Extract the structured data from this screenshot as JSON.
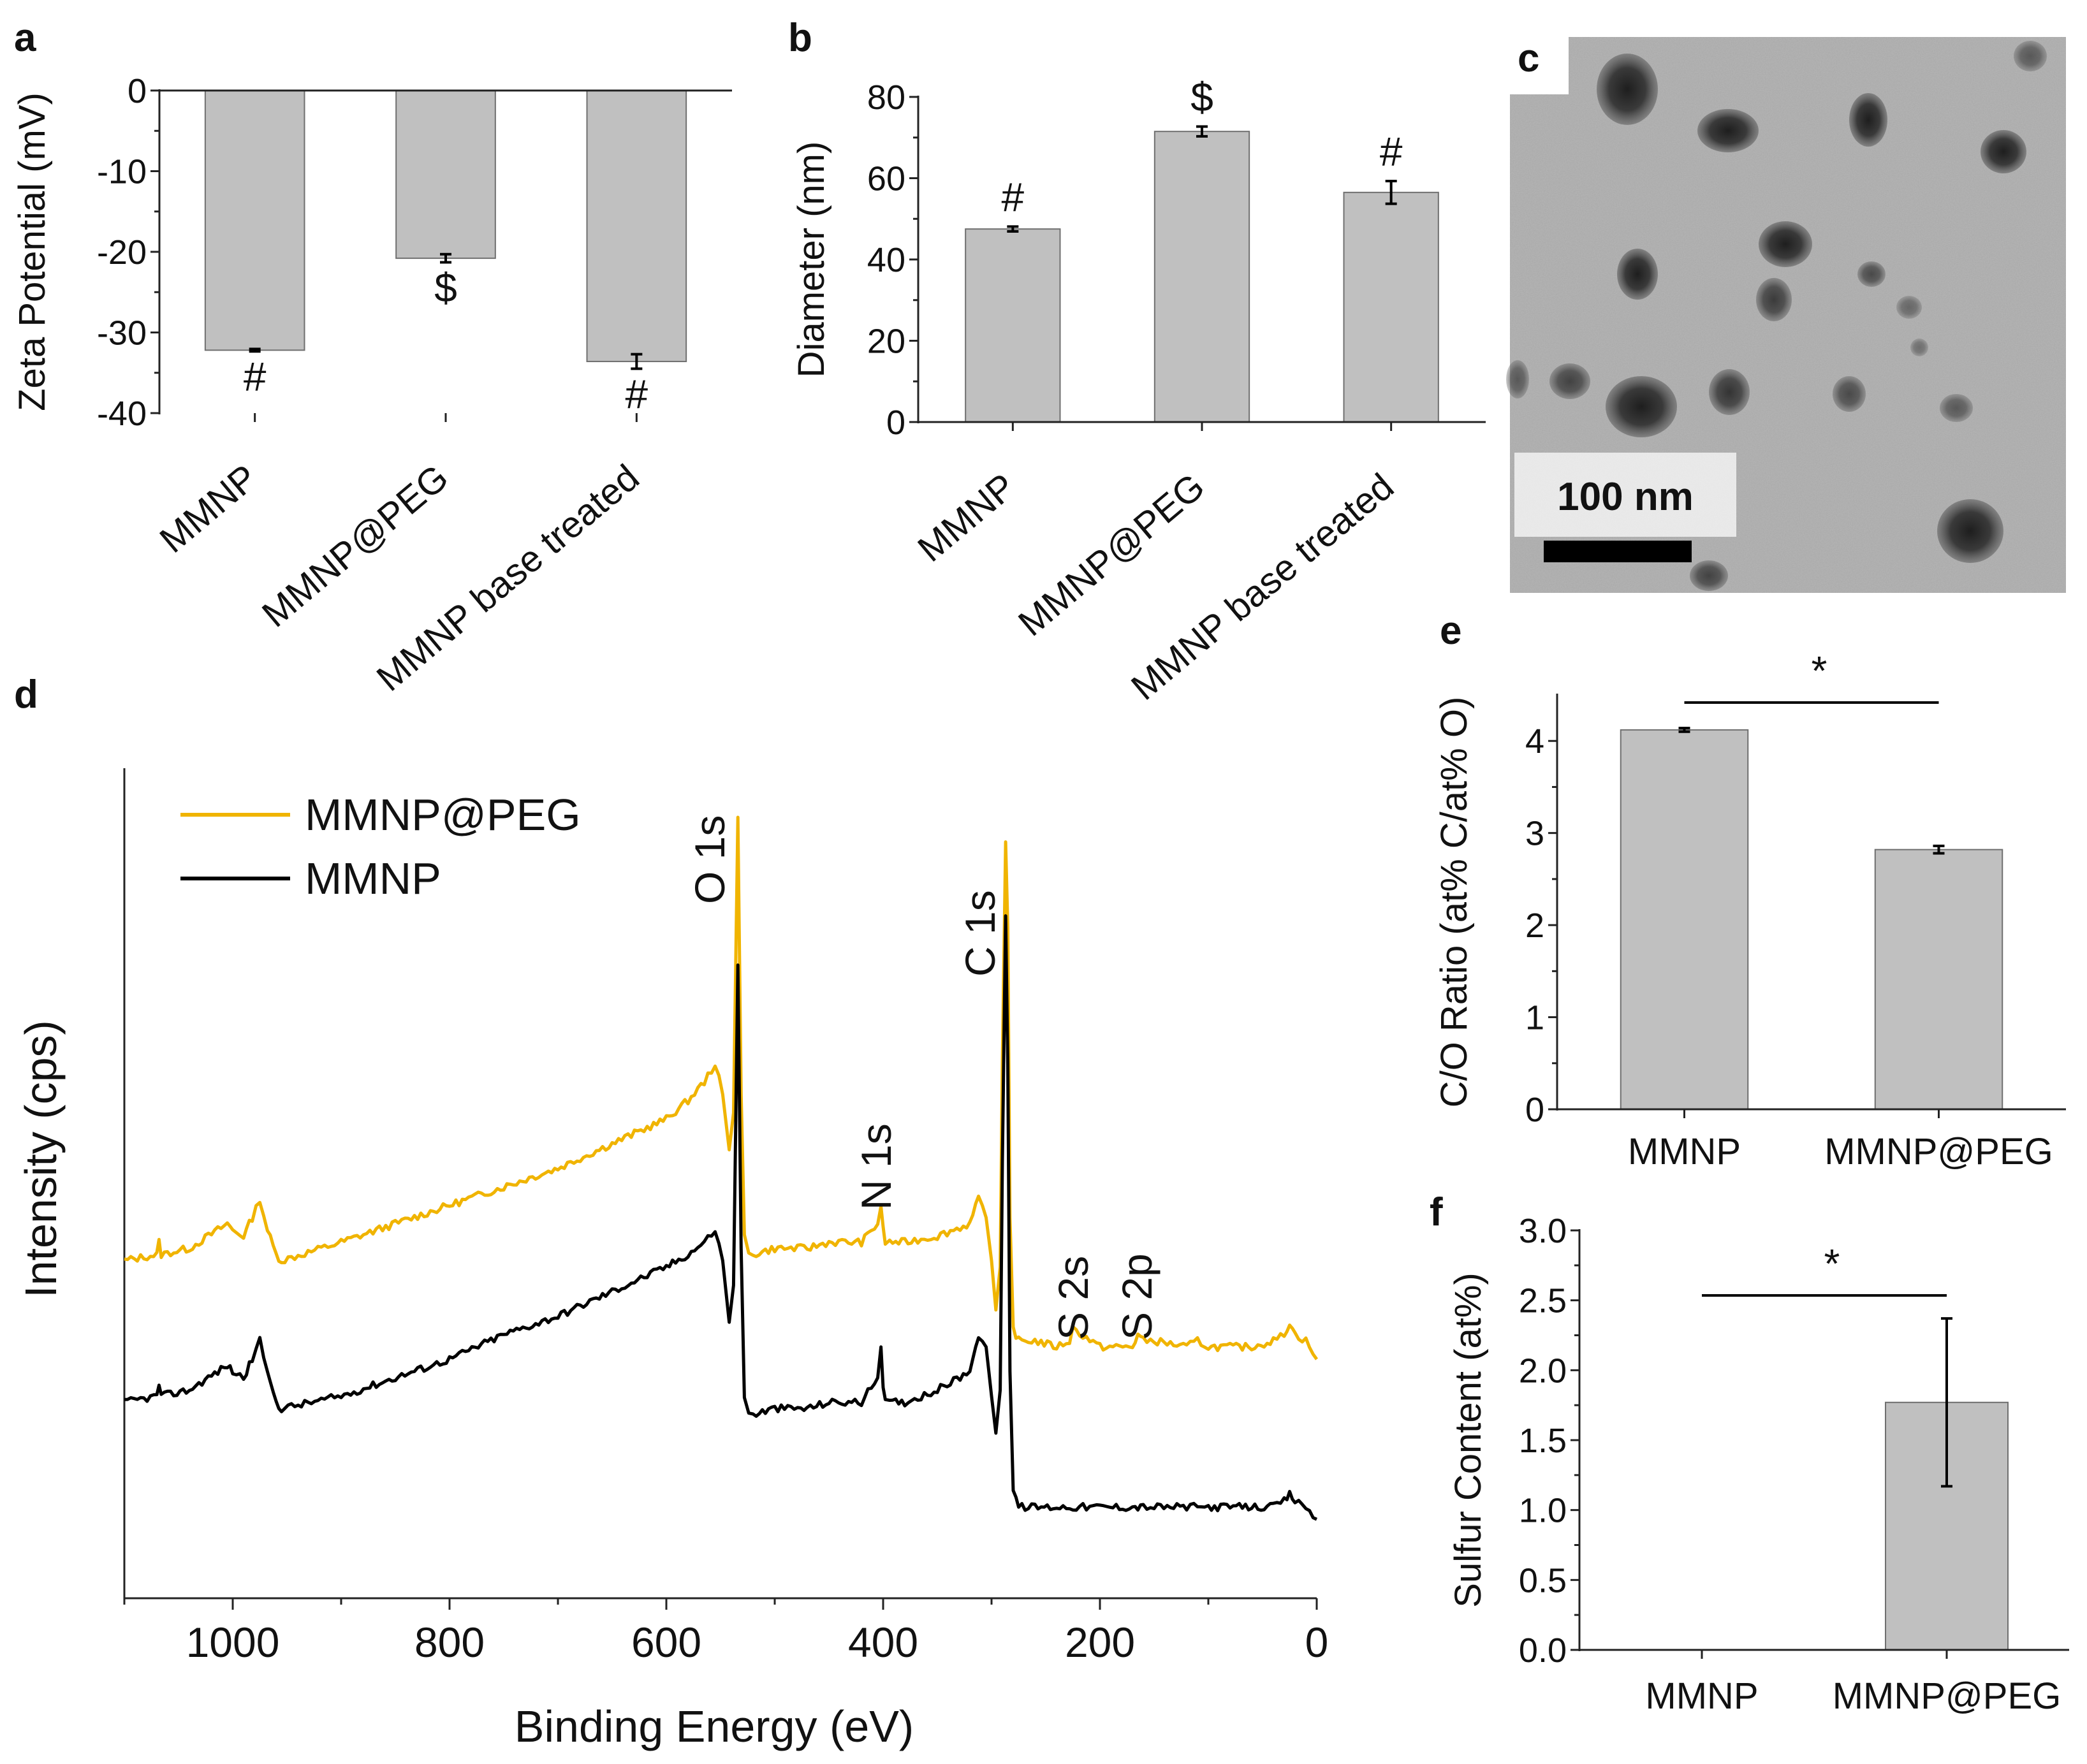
{
  "panels": {
    "a": "a",
    "b": "b",
    "c": "c",
    "d": "d",
    "e": "e",
    "f": "f"
  },
  "chart_data": [
    {
      "panel": "a",
      "type": "bar",
      "categories": [
        "MMNP",
        "MMNP@PEG",
        "MMNP base treated"
      ],
      "values": [
        -32.2,
        -20.8,
        -33.6
      ],
      "errors": [
        0.15,
        0.5,
        0.9
      ],
      "annotations": [
        "#",
        "$",
        "#"
      ],
      "ylabel": "Zeta Potential (mV)",
      "ylim": [
        -40,
        0
      ],
      "yticks": [
        0,
        -10,
        -20,
        -30,
        -40
      ],
      "ytick_labels": [
        "0",
        "-10",
        "-20",
        "-30",
        "-40"
      ]
    },
    {
      "panel": "b",
      "type": "bar",
      "categories": [
        "MMNP",
        "MMNP@PEG",
        "MMNP base treated"
      ],
      "values": [
        47.5,
        71.5,
        56.5
      ],
      "errors": [
        0.6,
        1.2,
        2.8
      ],
      "annotations": [
        "#",
        "$",
        "#"
      ],
      "ylabel": "Diameter (nm)",
      "ylim": [
        0,
        80
      ],
      "yticks": [
        0,
        20,
        40,
        60,
        80
      ],
      "ytick_labels": [
        "0",
        "20",
        "40",
        "60",
        "80"
      ]
    },
    {
      "panel": "d",
      "type": "line",
      "xlabel": "Binding Energy (eV)",
      "ylabel": "Intensity (cps)",
      "xlim": [
        1100,
        0
      ],
      "xticks": [
        1000,
        800,
        600,
        400,
        200,
        0
      ],
      "xtick_labels": [
        "1000",
        "800",
        "600",
        "400",
        "200",
        "0"
      ],
      "series": [
        {
          "name": "MMNP@PEG",
          "color": "#f0b400",
          "x": [
            1100,
            1070,
            1068,
            1066,
            1040,
            1005,
            1000,
            990,
            982,
            975,
            968,
            960,
            955,
            900,
            850,
            800,
            750,
            700,
            650,
            600,
            580,
            565,
            555,
            548,
            542,
            538,
            534,
            531,
            528,
            524,
            520,
            500,
            470,
            450,
            420,
            405,
            402,
            400,
            398,
            394,
            380,
            350,
            320,
            312,
            305,
            300,
            296,
            292,
            290,
            287,
            285,
            283,
            280,
            275,
            260,
            240,
            228,
            225,
            200,
            170,
            165,
            160,
            150,
            120,
            110,
            100,
            80,
            60,
            40,
            30,
            25,
            20,
            10,
            0
          ],
          "y": [
            0.28,
            0.29,
            0.31,
            0.29,
            0.3,
            0.34,
            0.33,
            0.32,
            0.35,
            0.38,
            0.33,
            0.29,
            0.28,
            0.31,
            0.34,
            0.37,
            0.4,
            0.43,
            0.47,
            0.51,
            0.54,
            0.57,
            0.6,
            0.55,
            0.46,
            0.52,
            1.0,
            0.55,
            0.32,
            0.29,
            0.29,
            0.3,
            0.3,
            0.31,
            0.31,
            0.34,
            0.37,
            0.33,
            0.31,
            0.31,
            0.31,
            0.32,
            0.34,
            0.38,
            0.35,
            0.28,
            0.2,
            0.27,
            0.6,
            0.96,
            0.82,
            0.35,
            0.17,
            0.15,
            0.15,
            0.14,
            0.15,
            0.17,
            0.14,
            0.14,
            0.16,
            0.15,
            0.15,
            0.14,
            0.15,
            0.14,
            0.14,
            0.14,
            0.15,
            0.16,
            0.18,
            0.16,
            0.15,
            0.12
          ]
        },
        {
          "name": "MMNP",
          "color": "#000000",
          "x": [
            1100,
            1070,
            1068,
            1066,
            1040,
            1005,
            1000,
            990,
            982,
            975,
            968,
            960,
            955,
            900,
            850,
            800,
            750,
            700,
            650,
            600,
            580,
            565,
            555,
            548,
            542,
            538,
            534,
            531,
            528,
            524,
            520,
            500,
            470,
            450,
            420,
            405,
            402,
            400,
            398,
            394,
            380,
            350,
            320,
            312,
            305,
            300,
            296,
            292,
            290,
            287,
            285,
            283,
            280,
            275,
            260,
            240,
            228,
            225,
            200,
            170,
            165,
            160,
            150,
            120,
            110,
            100,
            80,
            60,
            40,
            30,
            25,
            20,
            10,
            0
          ],
          "y": [
            0.05,
            0.06,
            0.08,
            0.06,
            0.07,
            0.11,
            0.1,
            0.09,
            0.12,
            0.15,
            0.1,
            0.05,
            0.04,
            0.06,
            0.09,
            0.12,
            0.16,
            0.19,
            0.23,
            0.27,
            0.29,
            0.31,
            0.33,
            0.28,
            0.18,
            0.24,
            0.76,
            0.3,
            0.06,
            0.03,
            0.03,
            0.04,
            0.04,
            0.05,
            0.05,
            0.09,
            0.14,
            0.08,
            0.05,
            0.05,
            0.05,
            0.07,
            0.1,
            0.16,
            0.14,
            0.06,
            0.0,
            0.07,
            0.44,
            0.84,
            0.6,
            0.1,
            -0.09,
            -0.12,
            -0.12,
            -0.12,
            -0.12,
            -0.12,
            -0.12,
            -0.12,
            -0.12,
            -0.12,
            -0.12,
            -0.12,
            -0.12,
            -0.12,
            -0.12,
            -0.12,
            -0.12,
            -0.11,
            -0.1,
            -0.11,
            -0.12,
            -0.14
          ]
        }
      ],
      "peak_labels": [
        {
          "label": "O 1s",
          "x": 531
        },
        {
          "label": "N 1s",
          "x": 400
        },
        {
          "label": "C 1s",
          "x": 285
        },
        {
          "label": "S 2s",
          "x": 229
        },
        {
          "label": "S 2p",
          "x": 165
        }
      ]
    },
    {
      "panel": "e",
      "type": "bar",
      "categories": [
        "MMNP",
        "MMNP@PEG"
      ],
      "values": [
        4.12,
        2.82
      ],
      "errors": [
        0.02,
        0.04
      ],
      "ylabel": "C/O Ratio (at% C/at% O)",
      "ylim": [
        0,
        4.5
      ],
      "yticks": [
        0,
        1,
        2,
        3,
        4
      ],
      "ytick_labels": [
        "0",
        "1",
        "2",
        "3",
        "4"
      ],
      "significance": "*"
    },
    {
      "panel": "f",
      "type": "bar",
      "categories": [
        "MMNP",
        "MMNP@PEG"
      ],
      "values": [
        0,
        1.77
      ],
      "errors": [
        0,
        0.6
      ],
      "ylabel": "Sulfur Content (at%)",
      "ylim": [
        0,
        3.0
      ],
      "yticks": [
        0,
        0.5,
        1.0,
        1.5,
        2.0,
        2.5,
        3.0
      ],
      "ytick_labels": [
        "0.0",
        "0.5",
        "1.0",
        "1.5",
        "2.0",
        "2.5",
        "3.0"
      ],
      "significance": "*"
    }
  ],
  "tem": {
    "scale_label": "100 nm"
  }
}
